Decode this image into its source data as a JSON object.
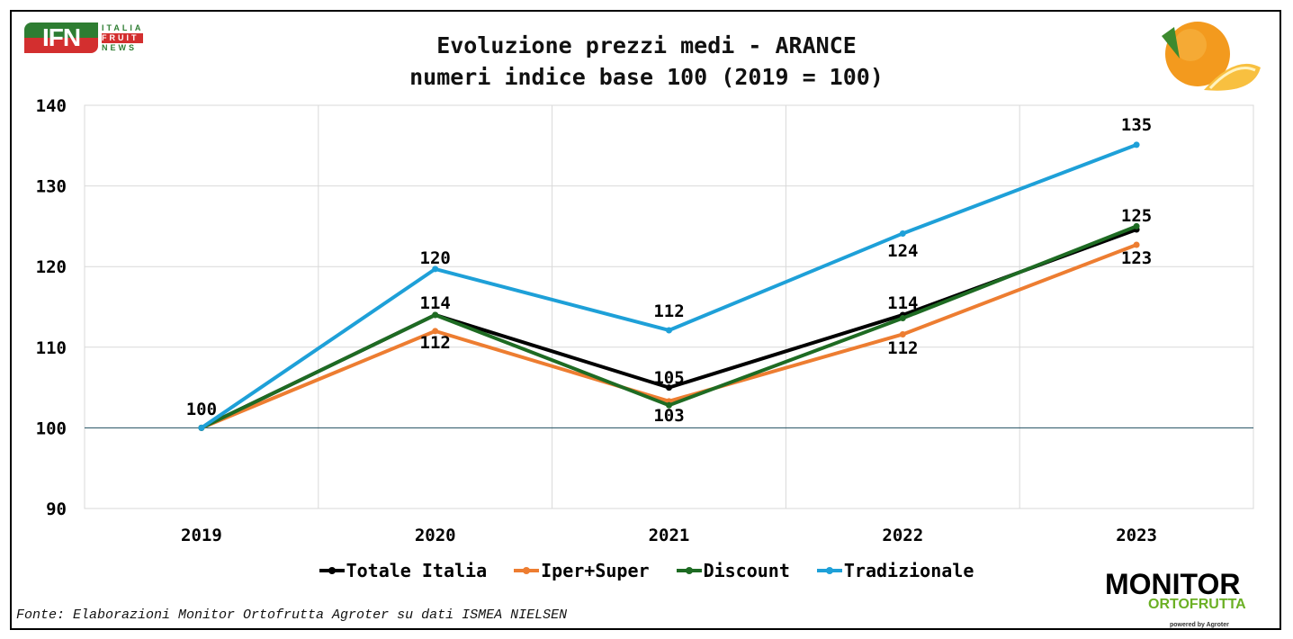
{
  "chart_data": {
    "type": "line",
    "title": "Evoluzione prezzi medi - ARANCE",
    "subtitle": "numeri indice base 100 (2019 = 100)",
    "categories": [
      "2019",
      "2020",
      "2021",
      "2022",
      "2023"
    ],
    "ylim": [
      90,
      140
    ],
    "yticks": [
      90,
      100,
      110,
      120,
      130,
      140
    ],
    "grid": true,
    "legend_position": "bottom",
    "series": [
      {
        "name": "Totale Italia",
        "color": "#000000",
        "values": [
          100,
          114,
          105,
          114,
          124.6
        ]
      },
      {
        "name": "Iper+Super",
        "color": "#ED7D31",
        "values": [
          100,
          112,
          103.3,
          111.6,
          122.7
        ]
      },
      {
        "name": "Discount",
        "color": "#1E6B23",
        "values": [
          100,
          114,
          102.8,
          113.6,
          125
        ]
      },
      {
        "name": "Tradizionale",
        "color": "#1EA0D8",
        "values": [
          100,
          119.7,
          112.1,
          124.1,
          135.1
        ]
      }
    ],
    "data_labels": [
      {
        "year": "2019",
        "text": "100"
      },
      {
        "year": "2020",
        "text": "120"
      },
      {
        "year": "2020",
        "text": "114"
      },
      {
        "year": "2020",
        "text": "112"
      },
      {
        "year": "2021",
        "text": "112"
      },
      {
        "year": "2021",
        "text": "105"
      },
      {
        "year": "2021",
        "text": "103"
      },
      {
        "year": "2022",
        "text": "124"
      },
      {
        "year": "2022",
        "text": "114"
      },
      {
        "year": "2022",
        "text": "112"
      },
      {
        "year": "2023",
        "text": "135"
      },
      {
        "year": "2023",
        "text": "125"
      },
      {
        "year": "2023",
        "text": "123"
      }
    ]
  },
  "source": "Fonte: Elaborazioni Monitor Ortofrutta Agroter su dati ISMEA NIELSEN",
  "logos": {
    "ifn": {
      "mark": "IFN",
      "lines": [
        "ITALIA",
        "FRUIT",
        "NEWS"
      ]
    },
    "monitor": {
      "line1": "MONITOR",
      "line2": "ORTOFRUTTA",
      "line3": "powered by Agroter"
    }
  }
}
